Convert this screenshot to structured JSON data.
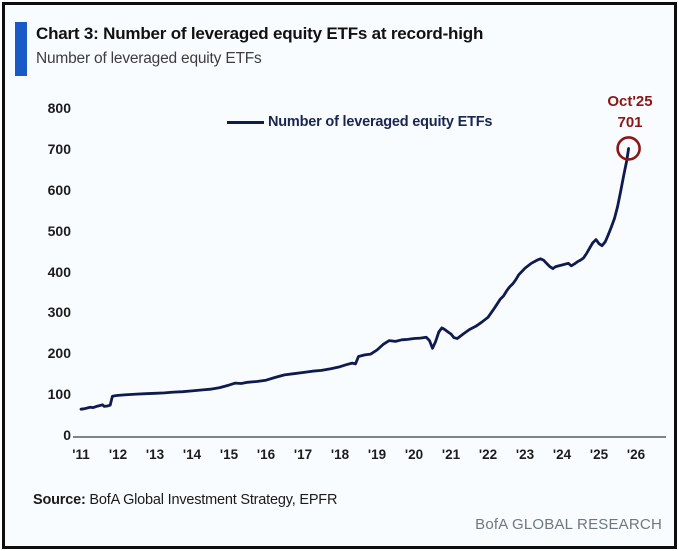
{
  "header": {
    "title": "Chart 3: Number of leveraged equity ETFs at record-high",
    "subtitle": "Number of leveraged equity ETFs"
  },
  "legend": {
    "label": "Number of leveraged equity ETFs"
  },
  "annotation": {
    "label": "Oct'25",
    "value": "701"
  },
  "footer": {
    "source_prefix": "Source:",
    "source_text": " BofA Global Investment Strategy, EPFR",
    "brand": "BofA GLOBAL RESEARCH"
  },
  "colors": {
    "line": "#101a4e",
    "annotation": "#8c1616",
    "accent_bar": "#1a5ac6",
    "axis": "#7d858c",
    "background": "#f8fcff"
  },
  "chart_data": {
    "type": "line",
    "title": "Number of leveraged equity ETFs",
    "xlabel": "",
    "ylabel": "",
    "ylim": [
      0,
      800
    ],
    "xlim": [
      2011,
      2026.5
    ],
    "grid": false,
    "legend_position": "top-center",
    "yticks": [
      0,
      100,
      200,
      300,
      400,
      500,
      600,
      700,
      800
    ],
    "xtick_labels": [
      "'11",
      "'12",
      "'13",
      "'14",
      "'15",
      "'16",
      "'17",
      "'18",
      "'19",
      "'20",
      "'21",
      "'22",
      "'23",
      "'24",
      "'25",
      "'26"
    ],
    "xtick_years": [
      2011,
      2012,
      2013,
      2014,
      2015,
      2016,
      2017,
      2018,
      2019,
      2020,
      2021,
      2022,
      2023,
      2024,
      2025,
      2026
    ],
    "highlight_point": {
      "x": 2025.8,
      "y": 701,
      "label": "Oct'25",
      "value": 701
    },
    "series": [
      {
        "name": "Number of leveraged equity ETFs",
        "points": [
          [
            2011.0,
            63
          ],
          [
            2011.08,
            64
          ],
          [
            2011.17,
            66
          ],
          [
            2011.25,
            68
          ],
          [
            2011.33,
            67
          ],
          [
            2011.42,
            70
          ],
          [
            2011.5,
            72
          ],
          [
            2011.58,
            74
          ],
          [
            2011.63,
            70
          ],
          [
            2011.71,
            71
          ],
          [
            2011.79,
            73
          ],
          [
            2011.85,
            95
          ],
          [
            2011.92,
            96
          ],
          [
            2012.0,
            97
          ],
          [
            2012.17,
            98
          ],
          [
            2012.33,
            99
          ],
          [
            2012.5,
            100
          ],
          [
            2012.75,
            101
          ],
          [
            2013.0,
            102
          ],
          [
            2013.25,
            103
          ],
          [
            2013.5,
            105
          ],
          [
            2013.75,
            106
          ],
          [
            2014.0,
            108
          ],
          [
            2014.25,
            110
          ],
          [
            2014.5,
            112
          ],
          [
            2014.75,
            116
          ],
          [
            2015.0,
            122
          ],
          [
            2015.17,
            127
          ],
          [
            2015.33,
            126
          ],
          [
            2015.5,
            129
          ],
          [
            2015.75,
            131
          ],
          [
            2016.0,
            134
          ],
          [
            2016.25,
            141
          ],
          [
            2016.5,
            147
          ],
          [
            2016.75,
            150
          ],
          [
            2017.0,
            153
          ],
          [
            2017.25,
            156
          ],
          [
            2017.5,
            158
          ],
          [
            2017.75,
            162
          ],
          [
            2018.0,
            167
          ],
          [
            2018.17,
            172
          ],
          [
            2018.33,
            176
          ],
          [
            2018.42,
            174
          ],
          [
            2018.5,
            192
          ],
          [
            2018.67,
            196
          ],
          [
            2018.83,
            198
          ],
          [
            2019.0,
            208
          ],
          [
            2019.17,
            222
          ],
          [
            2019.33,
            231
          ],
          [
            2019.5,
            229
          ],
          [
            2019.67,
            233
          ],
          [
            2019.83,
            234
          ],
          [
            2020.0,
            236
          ],
          [
            2020.17,
            237
          ],
          [
            2020.33,
            239
          ],
          [
            2020.42,
            231
          ],
          [
            2020.5,
            212
          ],
          [
            2020.58,
            228
          ],
          [
            2020.67,
            252
          ],
          [
            2020.75,
            262
          ],
          [
            2020.83,
            258
          ],
          [
            2020.92,
            252
          ],
          [
            2021.0,
            247
          ],
          [
            2021.08,
            238
          ],
          [
            2021.17,
            236
          ],
          [
            2021.33,
            247
          ],
          [
            2021.5,
            258
          ],
          [
            2021.67,
            266
          ],
          [
            2021.83,
            276
          ],
          [
            2022.0,
            288
          ],
          [
            2022.17,
            310
          ],
          [
            2022.33,
            332
          ],
          [
            2022.42,
            340
          ],
          [
            2022.5,
            352
          ],
          [
            2022.58,
            362
          ],
          [
            2022.67,
            370
          ],
          [
            2022.75,
            380
          ],
          [
            2022.83,
            392
          ],
          [
            2023.0,
            408
          ],
          [
            2023.17,
            420
          ],
          [
            2023.33,
            428
          ],
          [
            2023.42,
            431
          ],
          [
            2023.5,
            428
          ],
          [
            2023.58,
            420
          ],
          [
            2023.67,
            412
          ],
          [
            2023.75,
            407
          ],
          [
            2023.83,
            412
          ],
          [
            2024.0,
            416
          ],
          [
            2024.17,
            420
          ],
          [
            2024.25,
            414
          ],
          [
            2024.33,
            418
          ],
          [
            2024.42,
            424
          ],
          [
            2024.5,
            428
          ],
          [
            2024.58,
            433
          ],
          [
            2024.67,
            445
          ],
          [
            2024.75,
            458
          ],
          [
            2024.83,
            470
          ],
          [
            2024.92,
            478
          ],
          [
            2025.0,
            468
          ],
          [
            2025.08,
            463
          ],
          [
            2025.17,
            473
          ],
          [
            2025.25,
            490
          ],
          [
            2025.33,
            508
          ],
          [
            2025.42,
            530
          ],
          [
            2025.5,
            558
          ],
          [
            2025.58,
            594
          ],
          [
            2025.67,
            636
          ],
          [
            2025.75,
            672
          ],
          [
            2025.8,
            701
          ]
        ]
      }
    ]
  }
}
